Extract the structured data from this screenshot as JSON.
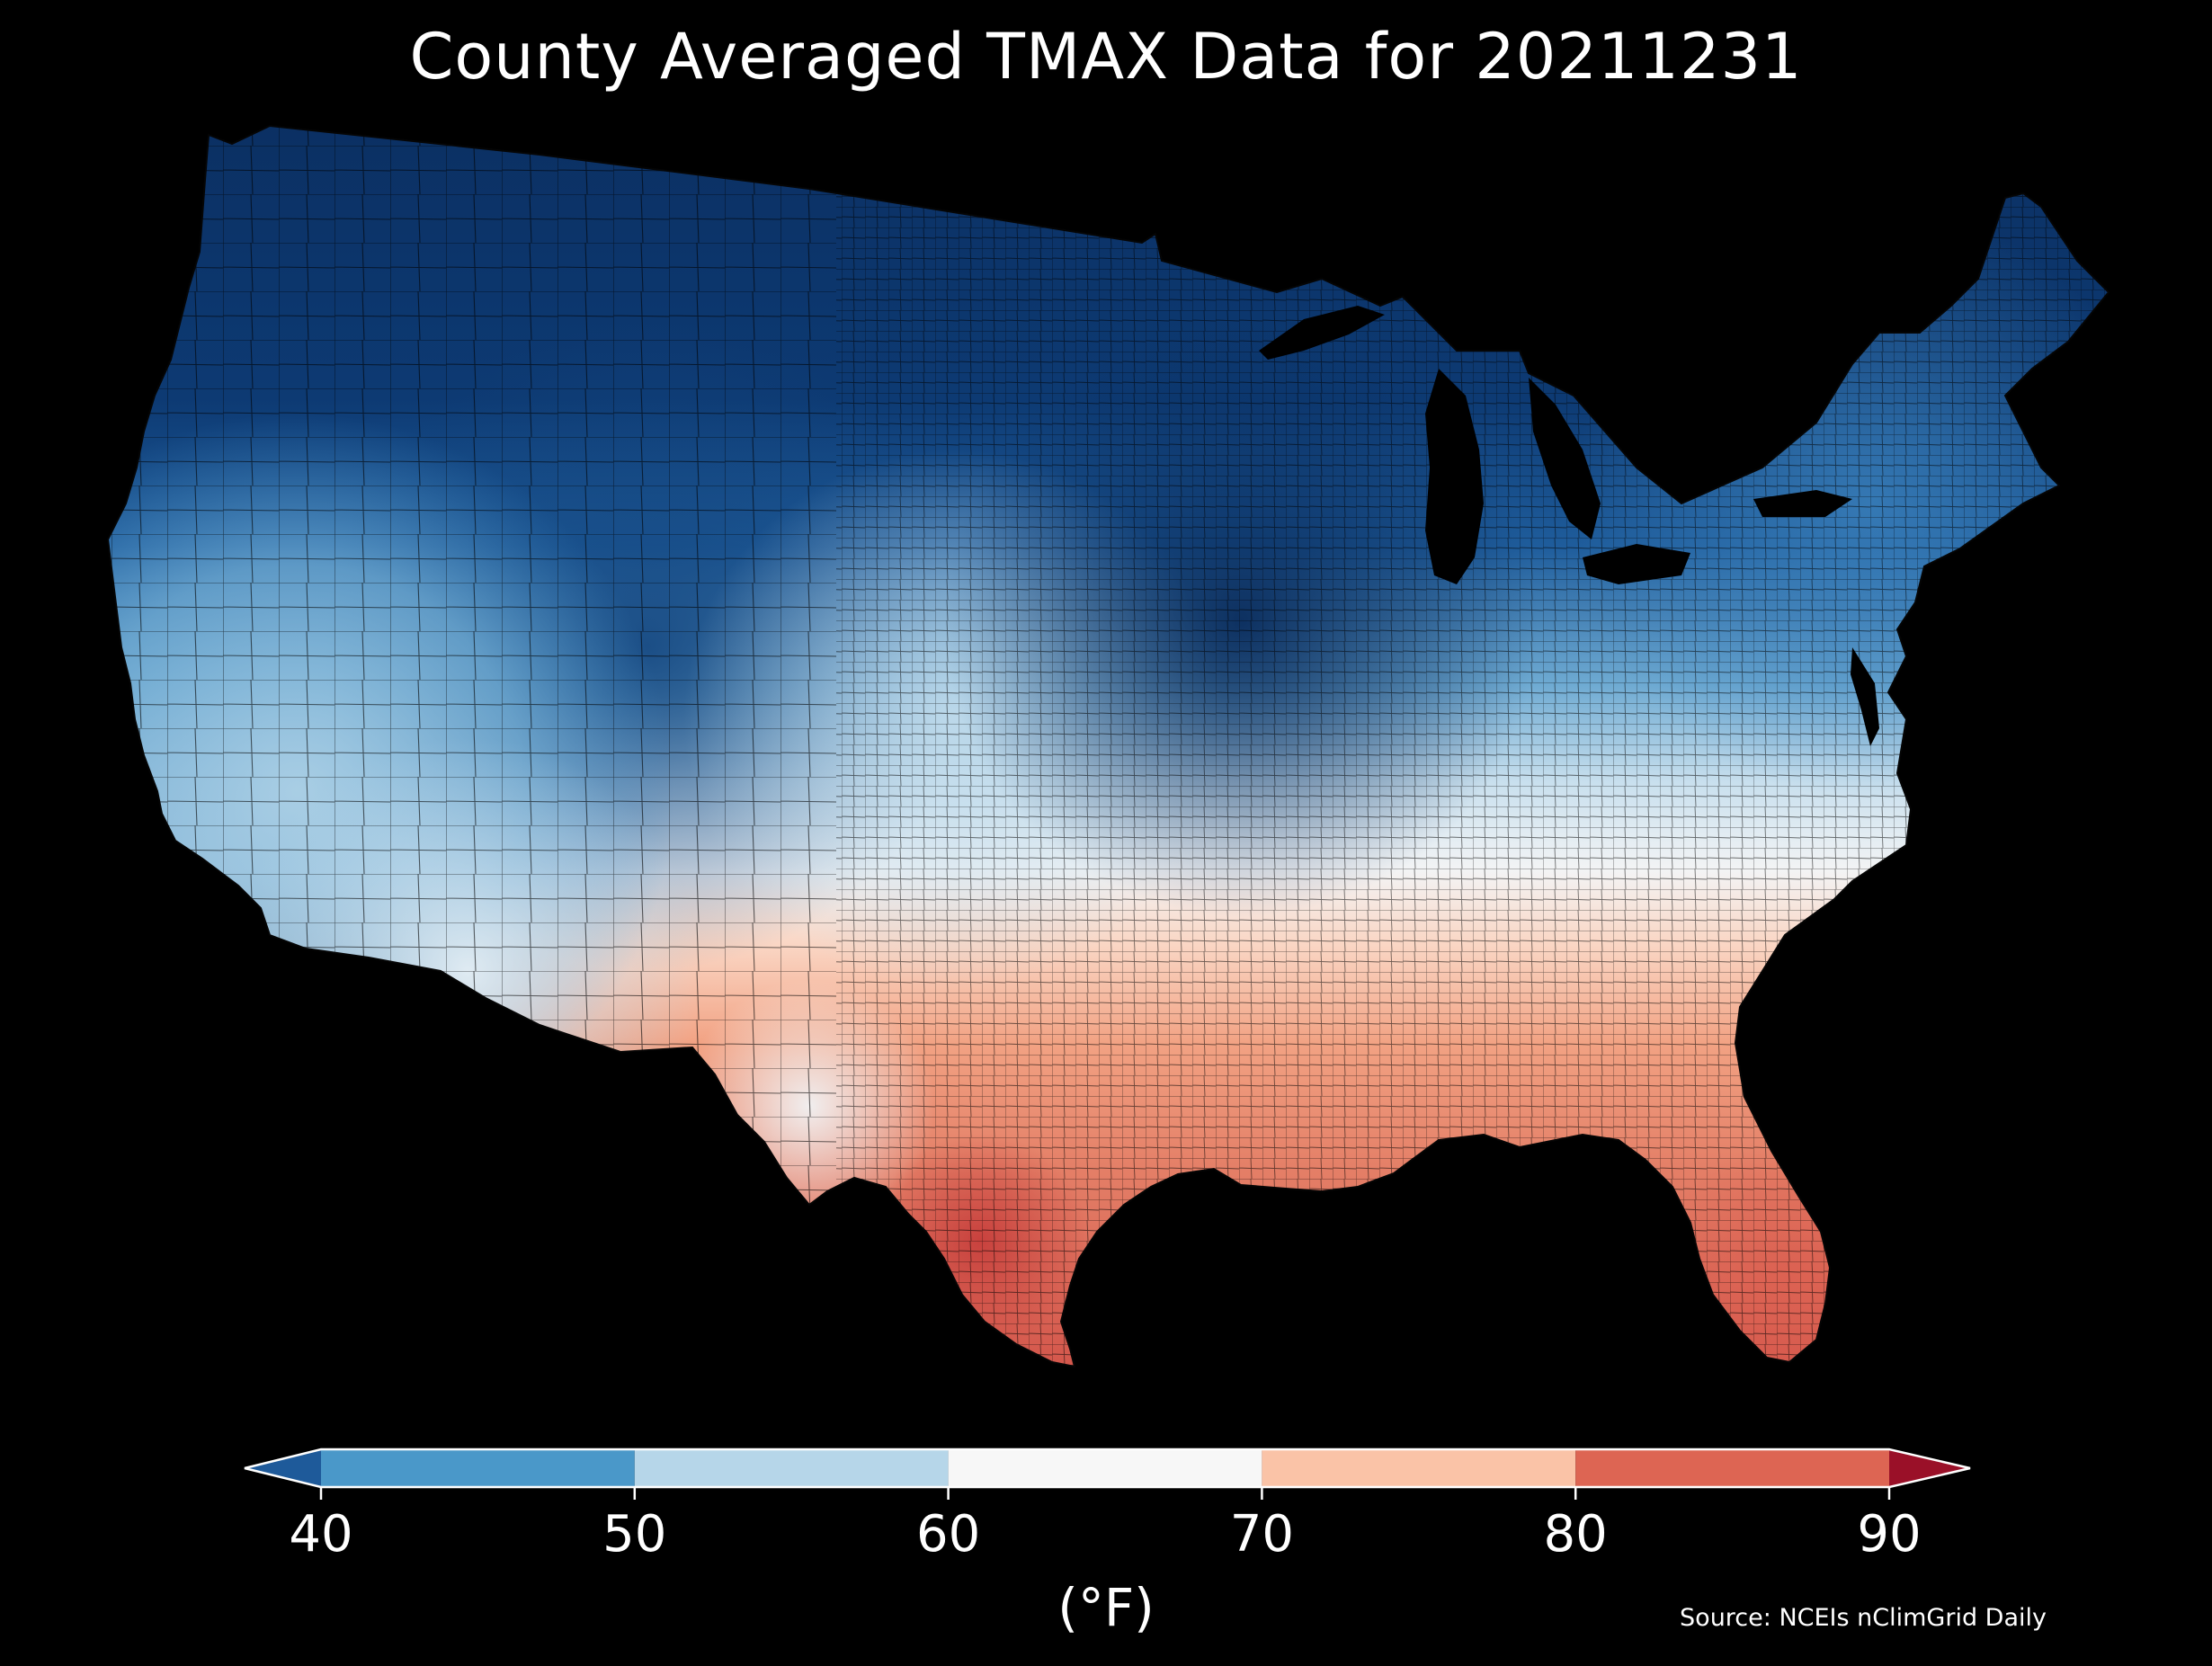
{
  "title": "County Averaged TMAX Data for 20211231",
  "source": "Source: NCEIs nClimGrid Daily",
  "colorbar": {
    "units": "(°F)",
    "ticks": [
      "40",
      "50",
      "60",
      "70",
      "80",
      "90"
    ],
    "bins": [
      {
        "min": 40,
        "max": 50,
        "color": "#4a98c9"
      },
      {
        "min": 50,
        "max": 60,
        "color": "#b6d6e9"
      },
      {
        "min": 60,
        "max": 70,
        "color": "#f7f7f7"
      },
      {
        "min": 70,
        "max": 80,
        "color": "#fac3a7"
      },
      {
        "min": 80,
        "max": 90,
        "color": "#dd6553"
      }
    ],
    "under_color": "#1e5a9a",
    "over_color": "#9a1028",
    "extend": "both"
  },
  "colors": {
    "background": "#000000",
    "county_border": "#0a0a0a",
    "text": "#ffffff"
  }
}
